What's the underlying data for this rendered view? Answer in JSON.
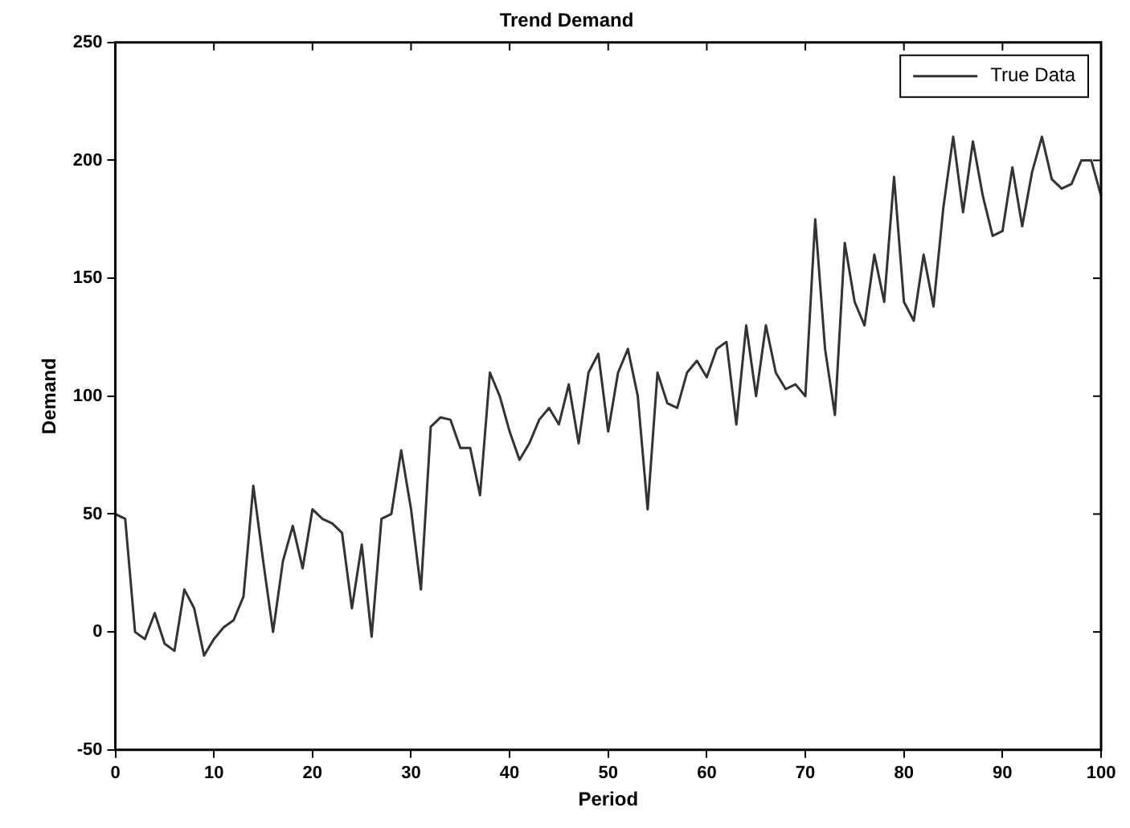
{
  "chart_data": {
    "type": "line",
    "title": "Trend Demand",
    "xlabel": "Period",
    "ylabel": "Demand",
    "x": [
      0,
      1,
      2,
      3,
      4,
      5,
      6,
      7,
      8,
      9,
      10,
      11,
      12,
      13,
      14,
      15,
      16,
      17,
      18,
      19,
      20,
      21,
      22,
      23,
      24,
      25,
      26,
      27,
      28,
      29,
      30,
      31,
      32,
      33,
      34,
      35,
      36,
      37,
      38,
      39,
      40,
      41,
      42,
      43,
      44,
      45,
      46,
      47,
      48,
      49,
      50,
      51,
      52,
      53,
      54,
      55,
      56,
      57,
      58,
      59,
      60,
      61,
      62,
      63,
      64,
      65,
      66,
      67,
      68,
      69,
      70,
      71,
      72,
      73,
      74,
      75,
      76,
      77,
      78,
      79,
      80,
      81,
      82,
      83,
      84,
      85,
      86,
      87,
      88,
      89,
      90,
      91,
      92,
      93,
      94,
      95,
      96,
      97,
      98,
      99,
      100
    ],
    "series": [
      {
        "name": "True Data",
        "color": "#333333",
        "values": [
          50,
          48,
          0,
          -3,
          8,
          -5,
          -8,
          18,
          10,
          -10,
          -3,
          2,
          5,
          15,
          62,
          30,
          0,
          30,
          45,
          27,
          52,
          48,
          46,
          42,
          10,
          37,
          -2,
          48,
          50,
          77,
          52,
          18,
          87,
          91,
          90,
          78,
          78,
          58,
          110,
          100,
          85,
          73,
          80,
          90,
          95,
          88,
          105,
          80,
          110,
          118,
          85,
          110,
          120,
          100,
          52,
          110,
          97,
          95,
          110,
          115,
          108,
          120,
          123,
          88,
          130,
          100,
          130,
          110,
          103,
          105,
          100,
          175,
          120,
          92,
          165,
          140,
          130,
          160,
          140,
          193,
          140,
          132,
          160,
          138,
          180,
          210,
          178,
          208,
          185,
          168,
          170,
          197,
          172,
          195,
          210,
          192,
          188,
          190,
          200,
          200,
          185
        ]
      }
    ],
    "xlim": [
      0,
      100
    ],
    "xticks": [
      0,
      10,
      20,
      30,
      40,
      50,
      60,
      70,
      80,
      90,
      100
    ],
    "ylim": [
      -50,
      250
    ],
    "yticks": [
      -50,
      0,
      50,
      100,
      150,
      200,
      250
    ],
    "grid": false,
    "legend": "top right",
    "marker": "none",
    "line_style": "solid"
  }
}
